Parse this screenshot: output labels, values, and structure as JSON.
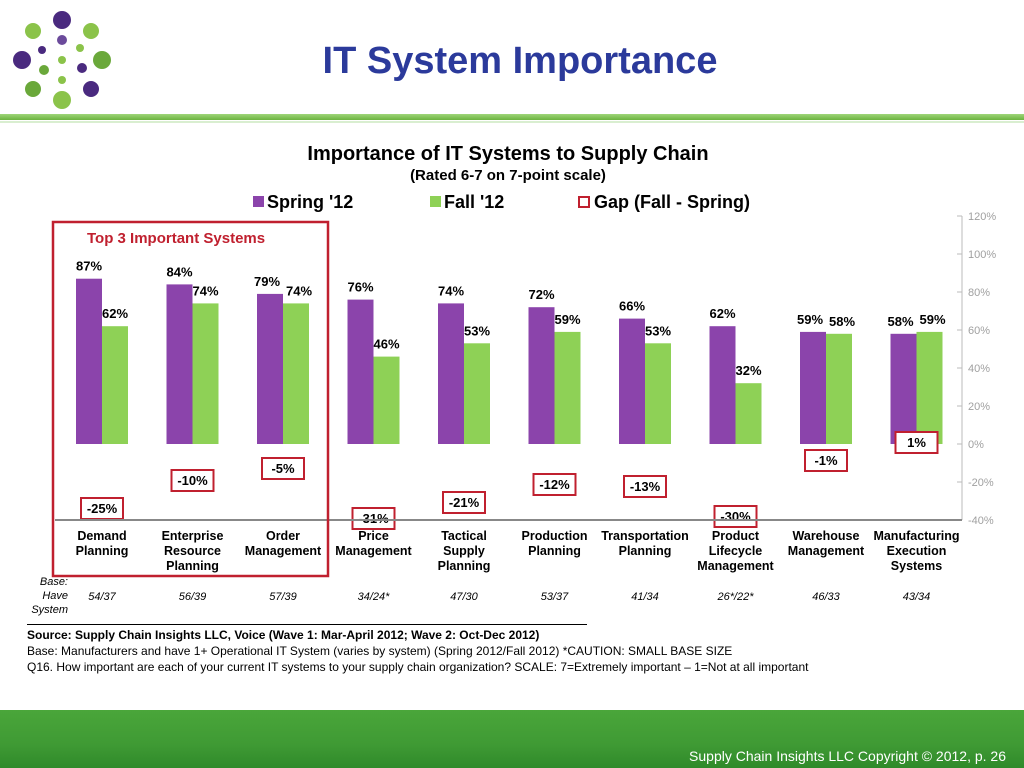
{
  "slide": {
    "title": "IT System Importance",
    "footer": "Supply Chain Insights LLC Copyright © 2012, p. 26"
  },
  "chart_data": {
    "type": "bar",
    "title": "Importance of IT Systems to Supply Chain",
    "subtitle": "(Rated 6-7 on 7-point scale)",
    "legend": [
      "Spring '12",
      "Fall '12",
      "Gap (Fall - Spring)"
    ],
    "legend_placement": "top",
    "highlight_label": "Top 3 Important Systems",
    "categories": [
      "Demand Planning",
      "Enterprise Resource Planning",
      "Order Management",
      "Price Management",
      "Tactical Supply Planning",
      "Production Planning",
      "Transportation Planning",
      "Product Lifecycle Management",
      "Warehouse Management",
      "Manufacturing Execution Systems"
    ],
    "series": [
      {
        "name": "Spring '12",
        "color": "#8b44ab",
        "values": [
          87,
          84,
          79,
          76,
          74,
          72,
          66,
          62,
          59,
          58
        ]
      },
      {
        "name": "Fall '12",
        "color": "#8ed156",
        "values": [
          62,
          74,
          74,
          46,
          53,
          59,
          53,
          32,
          58,
          59
        ]
      },
      {
        "name": "Gap (Fall - Spring)",
        "color": "#c0202f",
        "values": [
          -25,
          -10,
          -5,
          -31,
          -21,
          -12,
          -13,
          -30,
          -1,
          1
        ]
      }
    ],
    "gap_labels": [
      "-25%",
      "-10%",
      "-5%",
      "-31%",
      "-21%",
      "-12%",
      "-13%",
      "-30%",
      "-1%",
      "1%"
    ],
    "ylim": [
      -40,
      120
    ],
    "yticks": [
      "120%",
      "100%",
      "80%",
      "60%",
      "40%",
      "20%",
      "0%",
      "-20%",
      "-40%"
    ],
    "base_label": "Base: Have System",
    "base_values": [
      "54/37",
      "56/39",
      "57/39",
      "34/24*",
      "47/30",
      "53/37",
      "41/34",
      "26*/22*",
      "46/33",
      "43/34"
    ]
  },
  "notes": {
    "source": "Source:  Supply Chain Insights LLC, Voice (Wave 1: Mar-April 2012; Wave 2: Oct-Dec 2012)",
    "base": "Base:  Manufacturers and have 1+ Operational IT System (varies by system) (Spring 2012/Fall 2012) *CAUTION:  SMALL BASE SIZE",
    "question": "Q16. How important are each of your current IT systems to your supply chain organization? SCALE:  7=Extremely important – 1=Not at all important"
  }
}
